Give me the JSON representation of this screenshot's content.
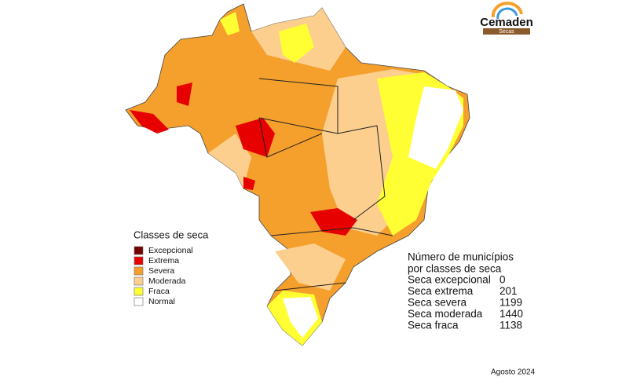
{
  "logo": {
    "name": "Cemaden",
    "tag": "Secas"
  },
  "legend": {
    "title": "Classes de seca",
    "items": [
      {
        "label": "Excepcional",
        "color": "#730000"
      },
      {
        "label": "Extrema",
        "color": "#e60000"
      },
      {
        "label": "Severa",
        "color": "#f5a02c"
      },
      {
        "label": "Moderada",
        "color": "#fccf8f"
      },
      {
        "label": "Fraca",
        "color": "#ffff33"
      },
      {
        "label": "Normal",
        "color": "#ffffff"
      }
    ]
  },
  "stats": {
    "title_lines": [
      "Número de municípios",
      "por classes de seca"
    ],
    "rows": [
      {
        "label": "Seca excepcional",
        "value": 0
      },
      {
        "label": "Seca extrema",
        "value": 201
      },
      {
        "label": "Seca severa",
        "value": 1199
      },
      {
        "label": "Seca moderada",
        "value": 1440
      },
      {
        "label": "Seca fraca",
        "value": 1138
      }
    ]
  },
  "date": "Agosto 2024"
}
